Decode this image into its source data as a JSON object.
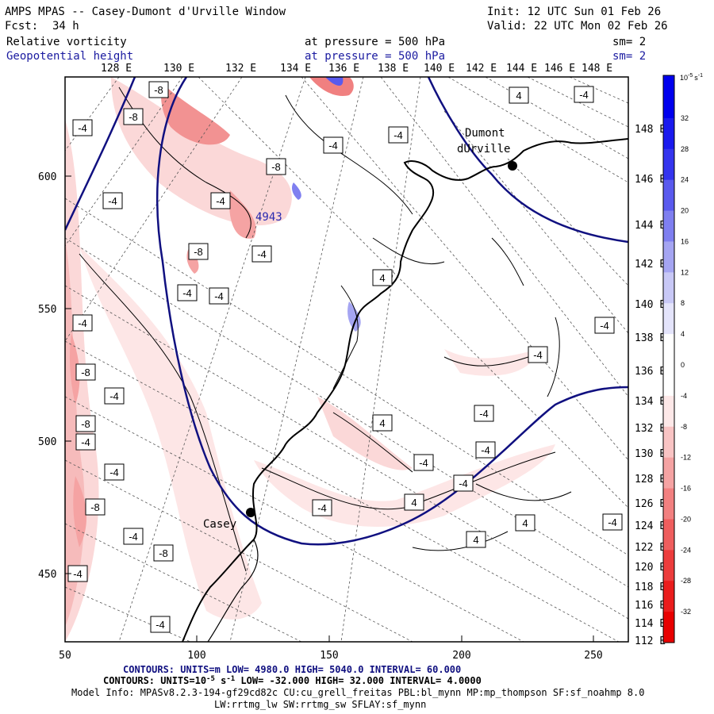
{
  "header": {
    "title": "AMPS MPAS -- Casey-Dumont d'Urville Window",
    "init": "Init: 12 UTC Sun 01 Feb 26",
    "fcst_label": "Fcst:",
    "fcst_value": "34 h",
    "valid": "Valid: 22 UTC Mon 02 Feb 26",
    "field1_name": "Relative vorticity",
    "field1_level": "at pressure =  500 hPa",
    "field1_sm": "sm= 2",
    "field2_name": "Geopotential height",
    "field2_level": "at pressure =  500 hPa",
    "field2_sm": "sm= 2"
  },
  "map": {
    "lon_labels_top": [
      "128 E",
      "130 E",
      "132 E",
      "134 E",
      "136 E",
      "138 E",
      "140 E",
      "142 E",
      "144 E",
      "146 E",
      "148 E"
    ],
    "lat_labels_right": [
      "148 E",
      "146 E",
      "144 E",
      "142 E",
      "140 E",
      "138 E",
      "136 E",
      "134 E",
      "132 E",
      "130 E",
      "128 E",
      "126 E",
      "124 E",
      "122 E",
      "120 E",
      "118 E",
      "116 E",
      "114 E",
      "112 E"
    ],
    "y_axis": [
      "600",
      "550",
      "500",
      "450"
    ],
    "x_axis": [
      "50",
      "100",
      "150",
      "200",
      "250"
    ],
    "stations": [
      {
        "name": "Dumont",
        "name2": "dUrville"
      },
      {
        "name": "Casey"
      }
    ],
    "height_label": "4943",
    "contour_labels": [
      "-8",
      "-8",
      "-4",
      "-8",
      "-4",
      "-4",
      "-8",
      "-4",
      "-8",
      "-4",
      "-4",
      "-4",
      "-8",
      "-4",
      "-8",
      "-4",
      "-4",
      "-4",
      "-4",
      "-8",
      "-4",
      "4",
      "4",
      "4",
      "4",
      "4",
      "4",
      "-4",
      "-4",
      "-4",
      "-4",
      "-4",
      "-4",
      "-4",
      "-4",
      "-4",
      "-4",
      "-4",
      "-4"
    ]
  },
  "colorbar": {
    "units_top": "10",
    "units_exp": "-5",
    "units_s": "s",
    "units_sexp": "-1",
    "labels": [
      "32",
      "28",
      "24",
      "20",
      "16",
      "12",
      "8",
      "4",
      "0",
      "-4",
      "-8",
      "-12",
      "-16",
      "-20",
      "-24",
      "-28",
      "-32"
    ],
    "colors": [
      "#0000ee",
      "#1a1aee",
      "#3535ee",
      "#5a5aee",
      "#7f7ff0",
      "#a5a5f2",
      "#c8c8f6",
      "#e4e4fb",
      "#ffffff",
      "#ffffff",
      "#fde8e8",
      "#f9c4c4",
      "#f5a3a3",
      "#f28080",
      "#ef5e5e",
      "#ec3c3c",
      "#ea1d1d",
      "#e80000"
    ]
  },
  "footer": {
    "contours1": "CONTOURS:  UNITS=m  LOW=  4980.0       HIGH=  5040.0       INTERVAL=   60.000",
    "contours2": "CONTOURS:  UNITS=10",
    "contours2_exp": "-5",
    "contours2_s": " s",
    "contours2_sexp": "-1",
    "contours2_rest": "   LOW= -32.000       HIGH= 32.000       INTERVAL=   4.0000",
    "model_info": "Model Info: MPASv8.2.3-194-gf29cd82c CU:cu_grell_freitas PBL:bl_mynn MP:mp_thompson SF:sf_noahmp 8.0",
    "model_info2": "LW:rrtmg_lw SW:rrtmg_sw SFLAY:sf_mynn"
  }
}
